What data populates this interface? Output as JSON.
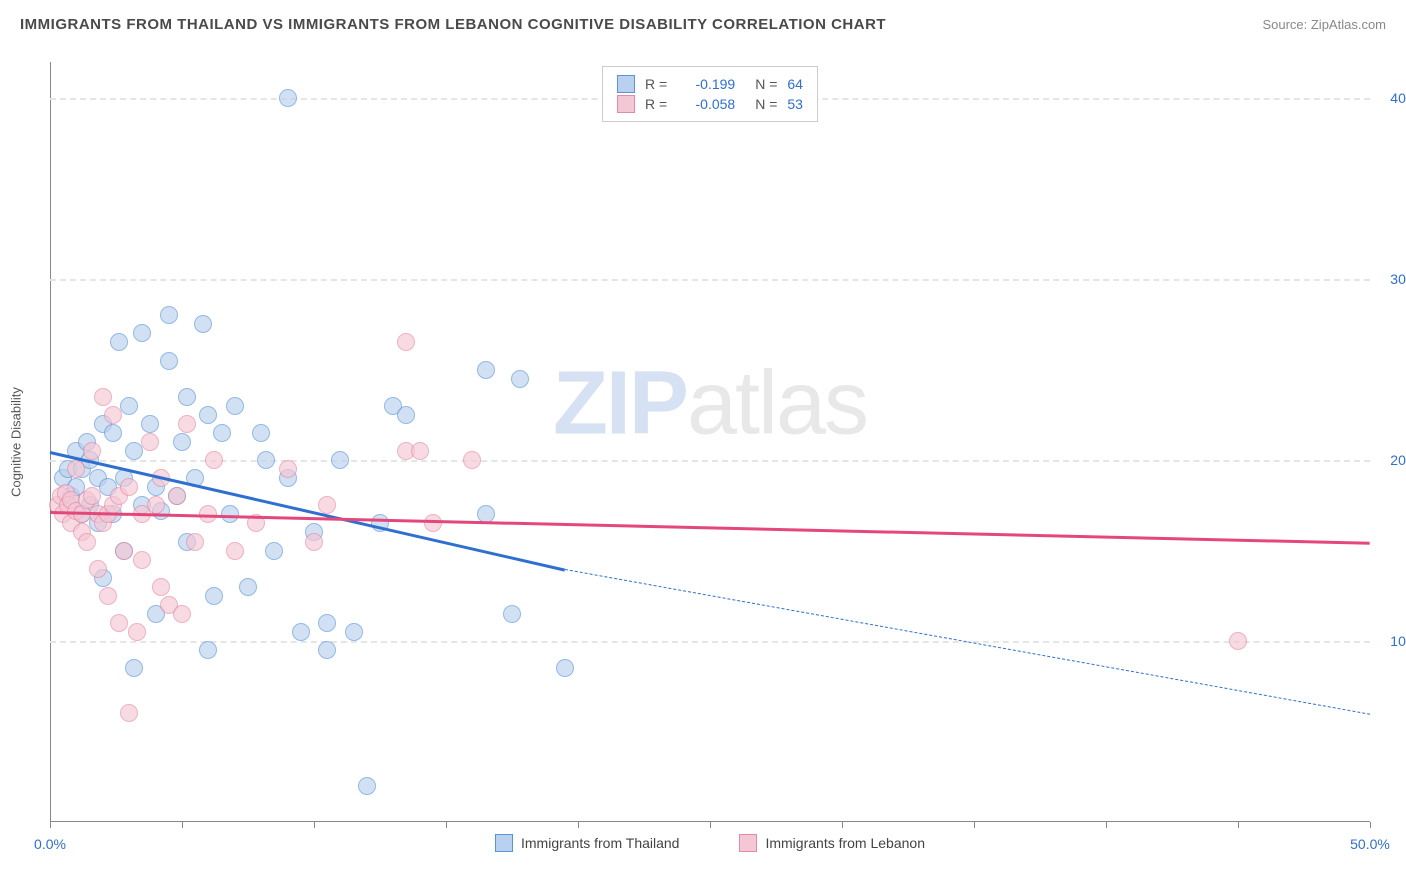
{
  "title": "IMMIGRANTS FROM THAILAND VS IMMIGRANTS FROM LEBANON COGNITIVE DISABILITY CORRELATION CHART",
  "source": "Source: ZipAtlas.com",
  "watermark_a": "ZIP",
  "watermark_b": "atlas",
  "chart": {
    "type": "scatter",
    "ylabel": "Cognitive Disability",
    "xlim": [
      0,
      50
    ],
    "ylim": [
      0,
      42
    ],
    "yticks": [
      10,
      20,
      30,
      40
    ],
    "ytick_labels": [
      "10.0%",
      "20.0%",
      "30.0%",
      "40.0%"
    ],
    "xticks": [
      0,
      5,
      10,
      15,
      20,
      25,
      30,
      35,
      40,
      45,
      50
    ],
    "xtick_labels": {
      "0": "0.0%",
      "50": "50.0%"
    },
    "grid_color": "#e5e5e5",
    "background": "#ffffff",
    "axis_color": "#888888",
    "tick_label_color": "#2f6fd0",
    "series": [
      {
        "name": "Immigrants from Thailand",
        "fill": "#b9d1ee",
        "stroke": "#5a94d8",
        "line_color": "#2f6fd0",
        "R": "-0.199",
        "N": "64",
        "reg": {
          "x1": 0,
          "y1": 20.5,
          "x2": 19.5,
          "y2": 14.0,
          "x3": 50,
          "y3": 6.0
        },
        "points": [
          [
            0.5,
            19.0
          ],
          [
            0.7,
            19.5
          ],
          [
            0.8,
            18.0
          ],
          [
            1.0,
            18.5
          ],
          [
            1.0,
            20.5
          ],
          [
            1.2,
            17.0
          ],
          [
            1.2,
            19.5
          ],
          [
            1.4,
            21.0
          ],
          [
            1.5,
            17.5
          ],
          [
            1.5,
            20.0
          ],
          [
            1.8,
            19.0
          ],
          [
            1.8,
            16.5
          ],
          [
            2.0,
            22.0
          ],
          [
            2.0,
            13.5
          ],
          [
            2.2,
            18.5
          ],
          [
            2.4,
            21.5
          ],
          [
            2.4,
            17.0
          ],
          [
            2.6,
            26.5
          ],
          [
            2.8,
            19.0
          ],
          [
            2.8,
            15.0
          ],
          [
            3.0,
            23.0
          ],
          [
            3.2,
            20.5
          ],
          [
            3.2,
            8.5
          ],
          [
            3.5,
            27.0
          ],
          [
            3.5,
            17.5
          ],
          [
            3.8,
            22.0
          ],
          [
            4.0,
            18.5
          ],
          [
            4.0,
            11.5
          ],
          [
            4.2,
            17.2
          ],
          [
            4.5,
            25.5
          ],
          [
            4.5,
            28.0
          ],
          [
            4.8,
            18.0
          ],
          [
            5.0,
            21.0
          ],
          [
            5.2,
            23.5
          ],
          [
            5.2,
            15.5
          ],
          [
            5.5,
            19.0
          ],
          [
            5.8,
            27.5
          ],
          [
            6.0,
            9.5
          ],
          [
            6.0,
            22.5
          ],
          [
            6.2,
            12.5
          ],
          [
            6.5,
            21.5
          ],
          [
            6.8,
            17.0
          ],
          [
            7.0,
            23.0
          ],
          [
            7.5,
            13.0
          ],
          [
            8.0,
            21.5
          ],
          [
            8.2,
            20.0
          ],
          [
            8.5,
            15.0
          ],
          [
            9.0,
            40.0
          ],
          [
            9.0,
            19.0
          ],
          [
            9.5,
            10.5
          ],
          [
            10.0,
            16.0
          ],
          [
            10.5,
            9.5
          ],
          [
            10.5,
            11.0
          ],
          [
            11.0,
            20.0
          ],
          [
            11.5,
            10.5
          ],
          [
            12.0,
            2.0
          ],
          [
            12.5,
            16.5
          ],
          [
            13.0,
            23.0
          ],
          [
            13.5,
            22.5
          ],
          [
            16.5,
            17.0
          ],
          [
            16.5,
            25.0
          ],
          [
            17.5,
            11.5
          ],
          [
            17.8,
            24.5
          ],
          [
            19.5,
            8.5
          ]
        ]
      },
      {
        "name": "Immigrants from Lebanon",
        "fill": "#f4c7d4",
        "stroke": "#e589a6",
        "line_color": "#e4487a",
        "R": "-0.058",
        "N": "53",
        "reg": {
          "x1": 0,
          "y1": 17.2,
          "x2": 50,
          "y2": 15.5
        },
        "points": [
          [
            0.3,
            17.5
          ],
          [
            0.4,
            18.0
          ],
          [
            0.5,
            17.0
          ],
          [
            0.6,
            18.2
          ],
          [
            0.7,
            17.5
          ],
          [
            0.8,
            17.8
          ],
          [
            0.8,
            16.5
          ],
          [
            1.0,
            17.2
          ],
          [
            1.0,
            19.5
          ],
          [
            1.2,
            17.0
          ],
          [
            1.2,
            16.0
          ],
          [
            1.4,
            17.8
          ],
          [
            1.4,
            15.5
          ],
          [
            1.6,
            18.0
          ],
          [
            1.6,
            20.5
          ],
          [
            1.8,
            17.0
          ],
          [
            1.8,
            14.0
          ],
          [
            2.0,
            16.5
          ],
          [
            2.0,
            23.5
          ],
          [
            2.2,
            17.0
          ],
          [
            2.2,
            12.5
          ],
          [
            2.4,
            22.5
          ],
          [
            2.4,
            17.5
          ],
          [
            2.6,
            18.0
          ],
          [
            2.6,
            11.0
          ],
          [
            2.8,
            15.0
          ],
          [
            3.0,
            18.5
          ],
          [
            3.0,
            6.0
          ],
          [
            3.3,
            10.5
          ],
          [
            3.5,
            17.0
          ],
          [
            3.5,
            14.5
          ],
          [
            3.8,
            21.0
          ],
          [
            4.0,
            17.5
          ],
          [
            4.2,
            19.0
          ],
          [
            4.2,
            13.0
          ],
          [
            4.5,
            12.0
          ],
          [
            4.8,
            18.0
          ],
          [
            5.0,
            11.5
          ],
          [
            5.2,
            22.0
          ],
          [
            5.5,
            15.5
          ],
          [
            6.0,
            17.0
          ],
          [
            6.2,
            20.0
          ],
          [
            7.0,
            15.0
          ],
          [
            7.8,
            16.5
          ],
          [
            9.0,
            19.5
          ],
          [
            10.0,
            15.5
          ],
          [
            10.5,
            17.5
          ],
          [
            13.5,
            20.5
          ],
          [
            13.5,
            26.5
          ],
          [
            14.0,
            20.5
          ],
          [
            14.5,
            16.5
          ],
          [
            16.0,
            20.0
          ],
          [
            45.0,
            10.0
          ]
        ]
      }
    ],
    "legend_top": {
      "R_label": "R =",
      "N_label": "N ="
    }
  }
}
